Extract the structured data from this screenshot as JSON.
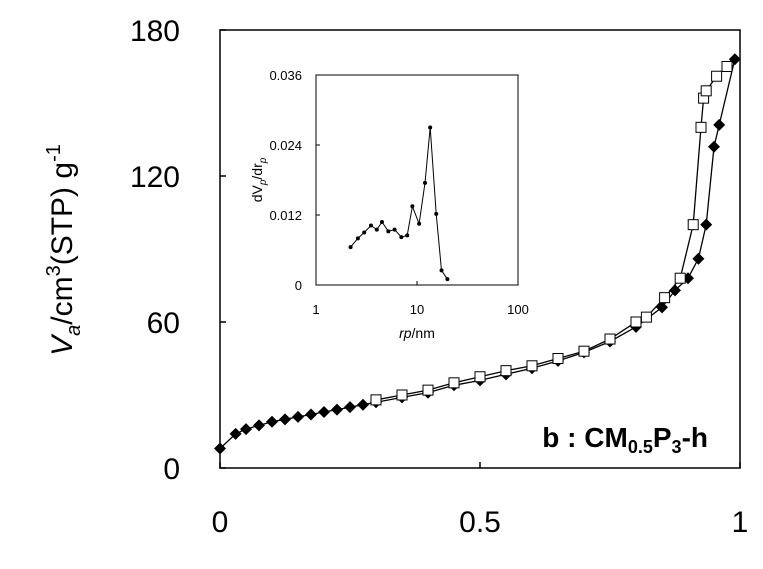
{
  "chart_data": [
    {
      "type": "scatter",
      "title": "",
      "panel_label": {
        "main": "b : CM",
        "sub1": "0.5",
        "mid": "P",
        "sub2": "3",
        "end": "-h"
      },
      "ylabel": {
        "prefix": "V",
        "sub": "a",
        "unit1": "/cm",
        "sup1": "3",
        "unit2": "(STP) g",
        "sup2": "-1"
      },
      "xlabel": "",
      "xlim": [
        0,
        1
      ],
      "ylim": [
        0,
        180
      ],
      "x_ticks": [
        "0",
        "0.5",
        "1"
      ],
      "y_ticks": [
        "0",
        "60",
        "120",
        "180"
      ],
      "grid": false,
      "series": [
        {
          "marker": "filled-diamond",
          "x": [
            0.0,
            0.03,
            0.05,
            0.075,
            0.1,
            0.125,
            0.15,
            0.175,
            0.2,
            0.225,
            0.25,
            0.275,
            0.3,
            0.35,
            0.4,
            0.45,
            0.5,
            0.55,
            0.6,
            0.65,
            0.7,
            0.75,
            0.8,
            0.85,
            0.875,
            0.9,
            0.92,
            0.935,
            0.95,
            0.96,
            0.99
          ],
          "y": [
            8,
            14,
            16,
            17.5,
            19,
            20,
            21,
            22,
            23,
            24,
            25,
            26,
            27,
            29,
            31,
            34,
            36,
            38.5,
            41,
            44,
            47.5,
            52,
            58,
            66,
            73,
            78,
            86,
            100,
            132,
            141,
            168
          ]
        },
        {
          "marker": "open-square",
          "x": [
            0.3,
            0.35,
            0.4,
            0.45,
            0.5,
            0.55,
            0.6,
            0.65,
            0.7,
            0.75,
            0.8,
            0.82,
            0.855,
            0.885,
            0.91,
            0.925,
            0.93,
            0.935,
            0.955,
            0.975
          ],
          "y": [
            28,
            30,
            32,
            35,
            37.5,
            40,
            42,
            45,
            48,
            53,
            60,
            62,
            70,
            78,
            100,
            140,
            152,
            155,
            161,
            165
          ]
        }
      ]
    },
    {
      "type": "line",
      "title": "",
      "xlabel": {
        "pre": "rp",
        "post": "/nm"
      },
      "ylabel": {
        "d1": "dV",
        "s1": "p",
        "mid": "/dr",
        "s2": "p"
      },
      "xscale": "log",
      "xlim": [
        1,
        100
      ],
      "ylim": [
        0,
        0.036
      ],
      "x_ticks": [
        "1",
        "10",
        "100"
      ],
      "y_ticks": [
        "0",
        "0.012",
        "0.024",
        "0.036"
      ],
      "grid": false,
      "series": [
        {
          "marker": "small-dot",
          "x": [
            2.2,
            2.6,
            3.0,
            3.5,
            4.0,
            4.5,
            5.2,
            6.0,
            7.0,
            8.0,
            9.0,
            10.5,
            12.0,
            13.5,
            15.5,
            17.5,
            20.0
          ],
          "y": [
            0.0065,
            0.008,
            0.009,
            0.0102,
            0.0095,
            0.0108,
            0.0092,
            0.0095,
            0.0082,
            0.0085,
            0.0135,
            0.0105,
            0.0175,
            0.027,
            0.0122,
            0.0025,
            0.001
          ]
        }
      ]
    }
  ]
}
